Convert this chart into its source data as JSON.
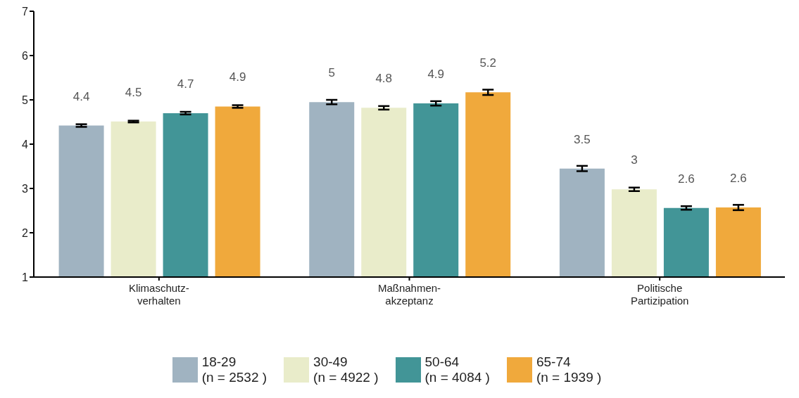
{
  "chart_data": {
    "type": "bar",
    "categories": [
      "Klimaschutz-\nverhalten",
      "Maßnahmen-\nakzeptanz",
      "Politische\nPartizipation"
    ],
    "series": [
      {
        "name": "18-29 (n = 2532 )",
        "color": "#a0b3c1",
        "values": [
          4.42,
          4.95,
          3.45
        ],
        "errors": [
          0.03,
          0.05,
          0.06
        ],
        "value_labels": [
          "4.4",
          "5",
          "3.5"
        ]
      },
      {
        "name": "30-49 (n = 4922 )",
        "color": "#e9ecca",
        "values": [
          4.51,
          4.82,
          2.98
        ],
        "errors": [
          0.02,
          0.04,
          0.04
        ],
        "value_labels": [
          "4.5",
          "4.8",
          "3"
        ]
      },
      {
        "name": "50-64 (n = 4084 )",
        "color": "#429597",
        "values": [
          4.7,
          4.92,
          2.56
        ],
        "errors": [
          0.03,
          0.05,
          0.04
        ],
        "value_labels": [
          "4.7",
          "4.9",
          "2.6"
        ]
      },
      {
        "name": "65-74 (n = 1939 )",
        "color": "#f0a93c",
        "values": [
          4.85,
          5.17,
          2.57
        ],
        "errors": [
          0.03,
          0.06,
          0.06
        ],
        "value_labels": [
          "4.9",
          "5.2",
          "2.6"
        ]
      }
    ],
    "ylim": [
      1,
      7
    ],
    "yticks": [
      1,
      2,
      3,
      4,
      5,
      6,
      7
    ],
    "grid": false,
    "legend": "bottom"
  }
}
